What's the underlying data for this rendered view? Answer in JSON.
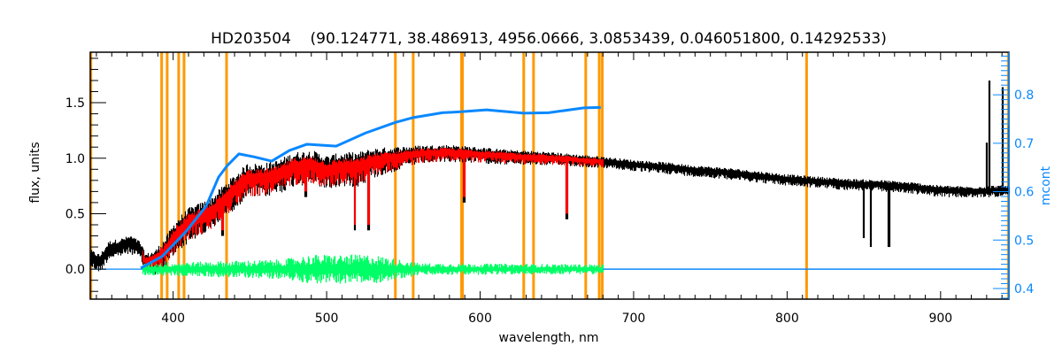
{
  "chart_data": {
    "type": "line",
    "title": "HD203504",
    "title_params": "(90.124771, 38.486913, 4956.0666, 3.0853439, 0.046051800, 0.14292533)",
    "xlabel": "wavelength, nm",
    "ylabel": "flux, units",
    "y2label": "mcont",
    "xlim": [
      346,
      944.5
    ],
    "ylim": [
      -0.27,
      1.955
    ],
    "y2lim": [
      0.378,
      0.888
    ],
    "xticks": [
      400,
      500,
      600,
      700,
      800,
      900
    ],
    "xtick_labels": [
      "400",
      "500",
      "600",
      "700",
      "800",
      "900"
    ],
    "yticks": [
      0.0,
      0.5,
      1.0,
      1.5
    ],
    "ytick_labels": [
      "0.0",
      "0.5",
      "1.0",
      "1.5"
    ],
    "y2ticks": [
      0.4,
      0.5,
      0.6,
      0.7,
      0.8
    ],
    "y2tick_labels": [
      "0.4",
      "0.5",
      "0.6",
      "0.7",
      "0.8"
    ],
    "colors": {
      "axes": "#000000",
      "flux": "#000000",
      "model": "#ff0000",
      "residuals": "#00ff66",
      "mcont": "#0a88ff",
      "masks": "#ff9900",
      "mask_inner": "#ffff00"
    },
    "series": [
      {
        "name": "observed flux",
        "range": [
          346,
          944.5
        ],
        "continuum": [
          [
            346,
            0.12
          ],
          [
            352,
            0.08
          ],
          [
            358,
            0.2
          ],
          [
            365,
            0.22
          ],
          [
            372,
            0.25
          ],
          [
            378,
            0.2
          ],
          [
            382,
            0.08
          ],
          [
            388,
            0.1
          ],
          [
            395,
            0.2
          ],
          [
            402,
            0.35
          ],
          [
            410,
            0.45
          ],
          [
            418,
            0.5
          ],
          [
            425,
            0.55
          ],
          [
            432,
            0.65
          ],
          [
            440,
            0.75
          ],
          [
            448,
            0.85
          ],
          [
            458,
            0.85
          ],
          [
            468,
            0.88
          ],
          [
            478,
            0.95
          ],
          [
            490,
            0.97
          ],
          [
            500,
            0.92
          ],
          [
            510,
            0.95
          ],
          [
            520,
            0.95
          ],
          [
            530,
            1.0
          ],
          [
            545,
            1.03
          ],
          [
            560,
            1.06
          ],
          [
            580,
            1.07
          ],
          [
            600,
            1.05
          ],
          [
            620,
            1.03
          ],
          [
            640,
            1.02
          ],
          [
            660,
            1.0
          ],
          [
            680,
            0.98
          ],
          [
            700,
            0.95
          ],
          [
            720,
            0.93
          ],
          [
            740,
            0.9
          ],
          [
            760,
            0.88
          ],
          [
            780,
            0.85
          ],
          [
            800,
            0.82
          ],
          [
            820,
            0.8
          ],
          [
            840,
            0.78
          ],
          [
            860,
            0.77
          ],
          [
            880,
            0.75
          ],
          [
            900,
            0.72
          ],
          [
            920,
            0.71
          ],
          [
            935,
            0.72
          ],
          [
            944.5,
            0.72
          ]
        ],
        "scatter": [
          [
            346,
            0.08
          ],
          [
            380,
            0.08
          ],
          [
            400,
            0.15
          ],
          [
            450,
            0.15
          ],
          [
            520,
            0.15
          ],
          [
            560,
            0.08
          ],
          [
            680,
            0.05
          ],
          [
            944.5,
            0.05
          ]
        ],
        "absorption_lines": [
          [
            432,
            0.3
          ],
          [
            486,
            0.65
          ],
          [
            518,
            0.35
          ],
          [
            527,
            0.35
          ],
          [
            589.3,
            0.6
          ],
          [
            656.3,
            0.45
          ],
          [
            849.8,
            0.28
          ],
          [
            854.2,
            0.2
          ],
          [
            866.2,
            0.2
          ]
        ],
        "emission_spikes": [
          [
            929.8,
            1.14
          ],
          [
            931.6,
            1.7
          ],
          [
            940.2,
            1.64
          ],
          [
            944,
            1.29
          ]
        ]
      },
      {
        "name": "model",
        "range": [
          380,
          680
        ]
      },
      {
        "name": "residuals",
        "range": [
          380,
          680
        ],
        "scatter": [
          [
            380,
            0.05
          ],
          [
            470,
            0.08
          ],
          [
            490,
            0.12
          ],
          [
            530,
            0.12
          ],
          [
            560,
            0.05
          ],
          [
            680,
            0.04
          ]
        ]
      },
      {
        "name": "mcont",
        "axis": "right",
        "points": [
          [
            378.9,
            0.442
          ],
          [
            392.7,
            0.466
          ],
          [
            408.2,
            0.517
          ],
          [
            421.5,
            0.57
          ],
          [
            429.6,
            0.63
          ],
          [
            435.3,
            0.654
          ],
          [
            442.8,
            0.678
          ],
          [
            452.6,
            0.672
          ],
          [
            464.2,
            0.663
          ],
          [
            475.7,
            0.685
          ],
          [
            487.2,
            0.698
          ],
          [
            506.2,
            0.694
          ],
          [
            525.2,
            0.721
          ],
          [
            544.8,
            0.743
          ],
          [
            556.4,
            0.753
          ],
          [
            575.4,
            0.763
          ],
          [
            587.5,
            0.765
          ],
          [
            604.2,
            0.769
          ],
          [
            628.4,
            0.762
          ],
          [
            644.6,
            0.763
          ],
          [
            667.6,
            0.773
          ],
          [
            678.6,
            0.774
          ]
        ]
      }
    ],
    "mask_lines_nm": [
      346.4,
      392.5,
      396.1,
      403.6,
      407.1,
      434.8,
      544.8,
      556.4,
      587.9,
      588.5,
      628.4,
      634.8,
      668.8,
      677.6,
      679.6,
      812.7,
      944.2
    ]
  }
}
